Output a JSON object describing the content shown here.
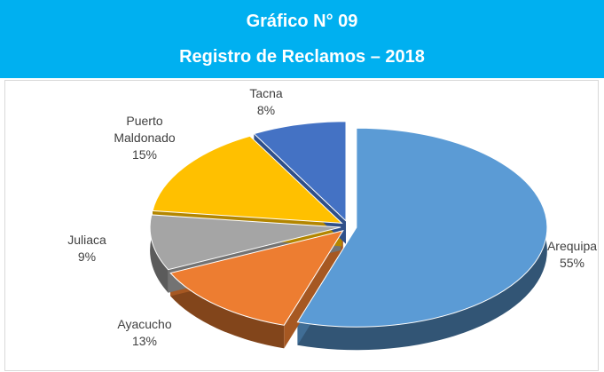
{
  "chart_data": {
    "type": "pie",
    "title": "Gráfico N° 09",
    "subtitle": "Registro de Reclamos – 2018",
    "categories": [
      "Arequipa",
      "Ayacucho",
      "Juliaca",
      "Puerto Maldonado",
      "Tacna"
    ],
    "values": [
      55,
      13,
      9,
      15,
      8
    ],
    "value_labels": [
      "55%",
      "13%",
      "9%",
      "15%",
      "8%"
    ],
    "colors": [
      "#5b9bd5",
      "#ed7d31",
      "#a5a5a5",
      "#ffc000",
      "#4472c4"
    ]
  }
}
